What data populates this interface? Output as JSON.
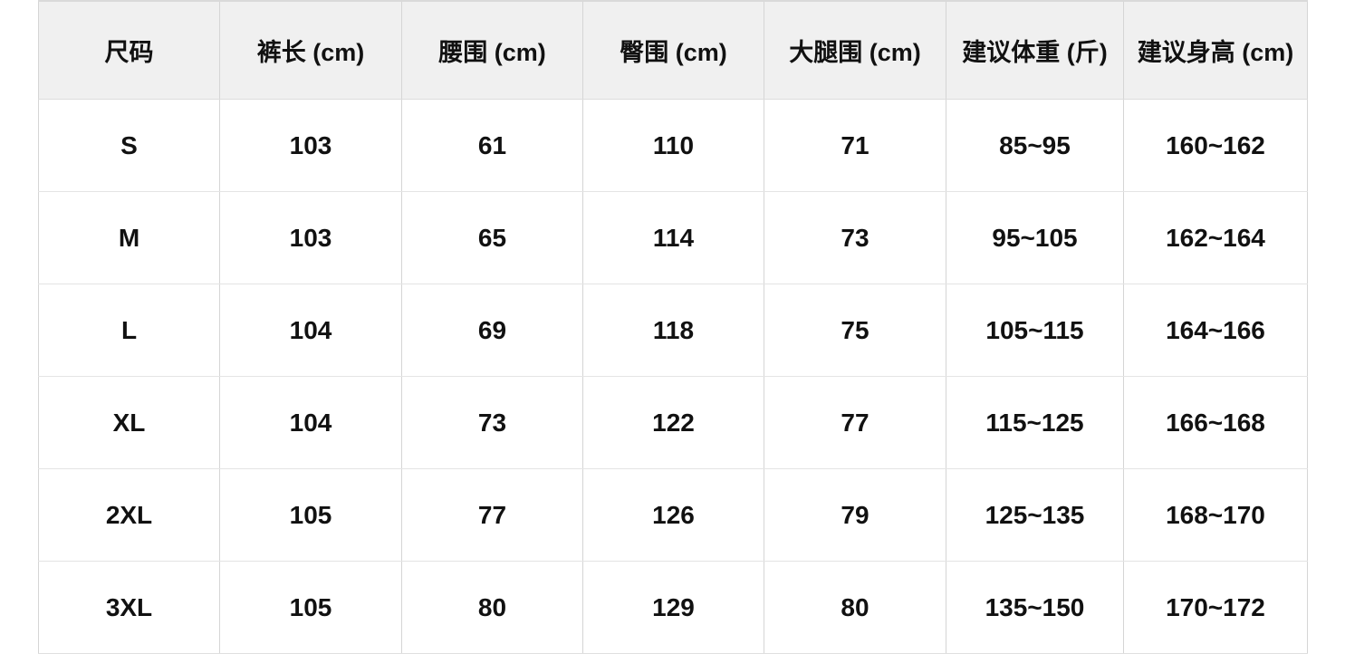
{
  "chart_data": {
    "type": "table",
    "columns": [
      "尺码",
      "裤长 (cm)",
      "腰围 (cm)",
      "臀围 (cm)",
      "大腿围 (cm)",
      "建议体重 (斤)",
      "建议身高 (cm)"
    ],
    "rows": [
      [
        "S",
        "103",
        "61",
        "110",
        "71",
        "85~95",
        "160~162"
      ],
      [
        "M",
        "103",
        "65",
        "114",
        "73",
        "95~105",
        "162~164"
      ],
      [
        "L",
        "104",
        "69",
        "118",
        "75",
        "105~115",
        "164~166"
      ],
      [
        "XL",
        "104",
        "73",
        "122",
        "77",
        "115~125",
        "166~168"
      ],
      [
        "2XL",
        "105",
        "77",
        "126",
        "79",
        "125~135",
        "168~170"
      ],
      [
        "3XL",
        "105",
        "80",
        "129",
        "80",
        "135~150",
        "170~172"
      ]
    ]
  },
  "colors": {
    "header_bg": "#f0f0f0",
    "vertical_border": "#d5d5d5",
    "horizontal_border": "#e4e4e4",
    "text": "#111111",
    "page_bg": "#ffffff"
  }
}
